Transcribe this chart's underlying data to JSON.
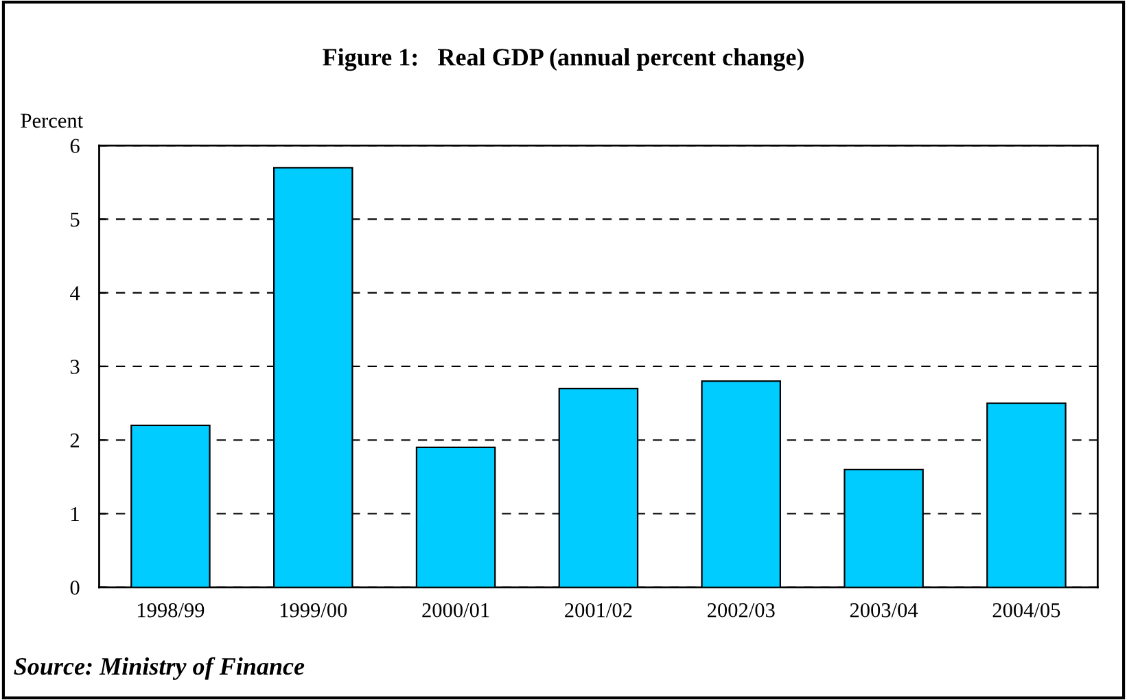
{
  "chart_data": {
    "type": "bar",
    "title": "Figure 1:   Real GDP (annual percent change)",
    "ylabel": "Percent",
    "categories": [
      "1998/99",
      "1999/00",
      "2000/01",
      "2001/02",
      "2002/03",
      "2003/04",
      "2004/05"
    ],
    "values": [
      2.2,
      5.7,
      1.9,
      2.7,
      2.8,
      1.6,
      2.5
    ],
    "color": "#00ccff",
    "ylim": [
      0,
      6
    ],
    "yticks": [
      0,
      1,
      2,
      3,
      4,
      5,
      6
    ],
    "grid": "y",
    "legend": false,
    "annotations": [
      "Source: Ministry of Finance"
    ]
  }
}
